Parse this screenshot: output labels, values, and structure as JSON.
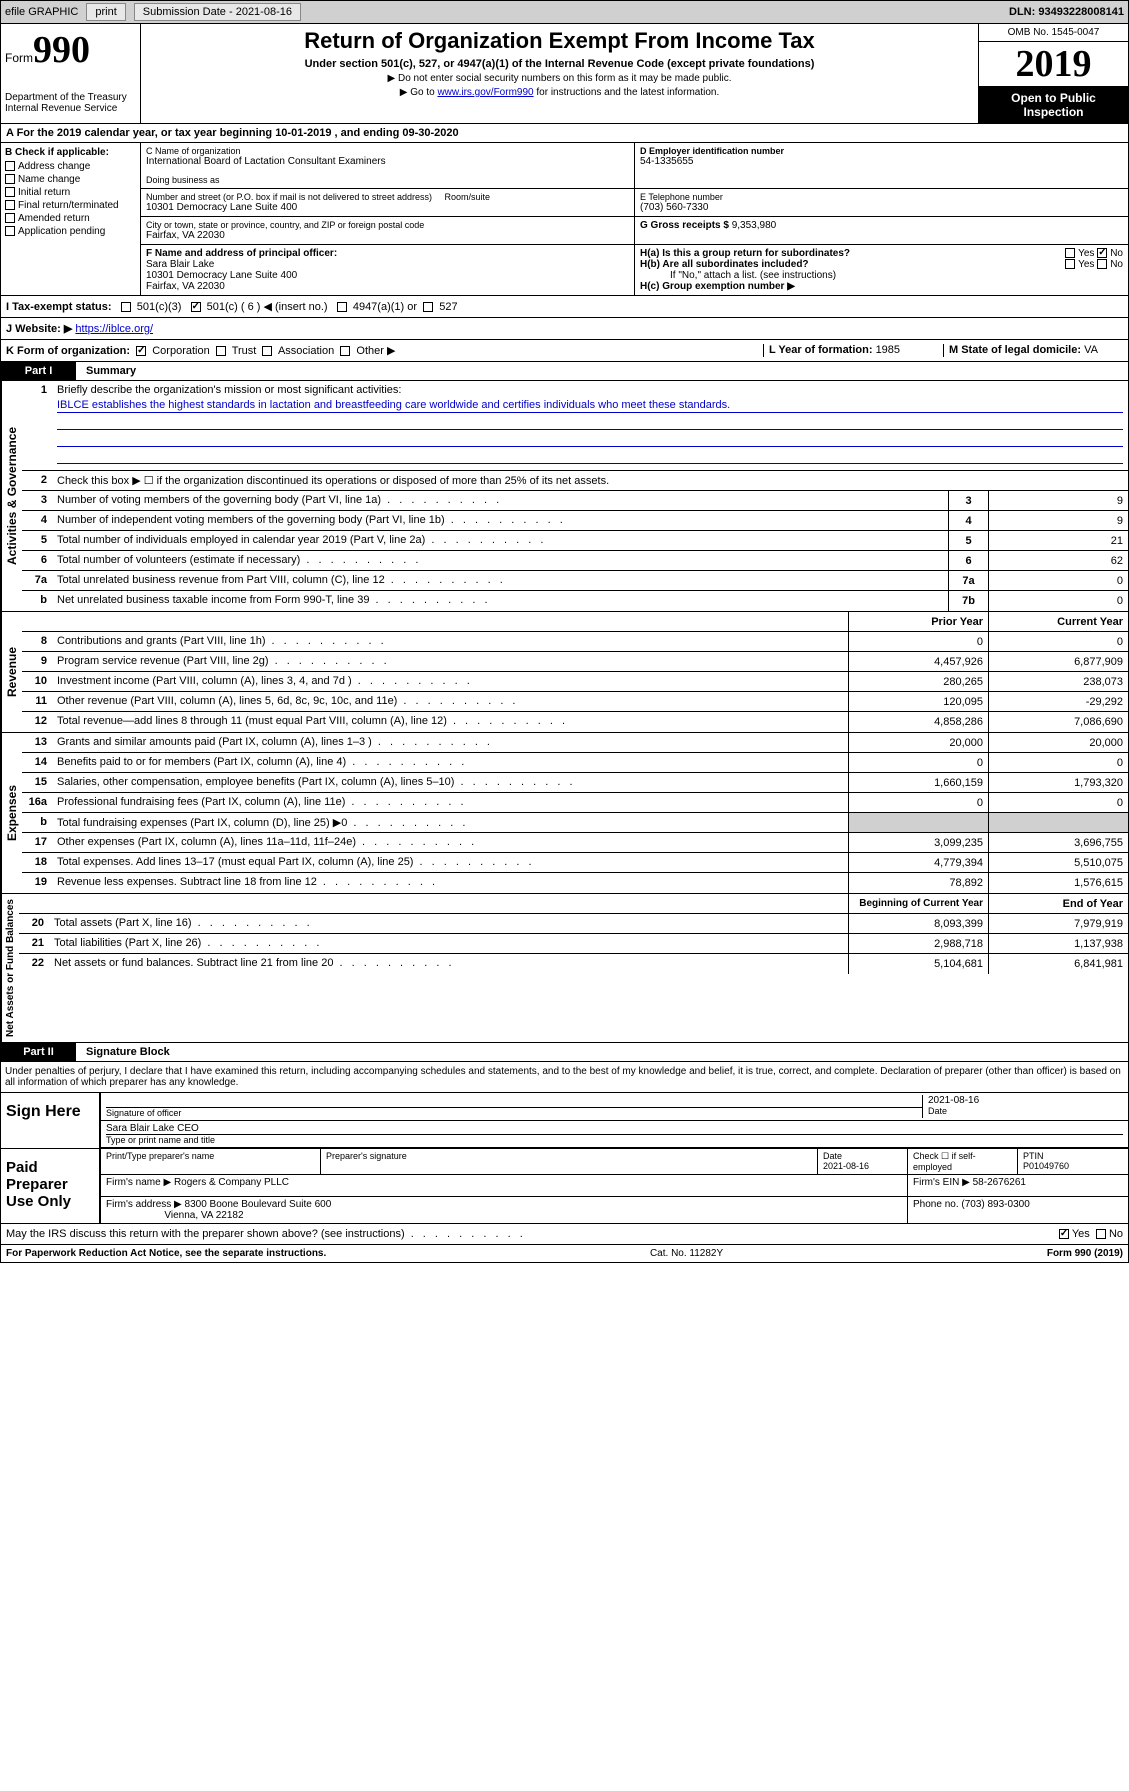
{
  "topbar": {
    "efile": "efile GRAPHIC",
    "print": "print",
    "subdate_label": "Submission Date - ",
    "subdate": "2021-08-16",
    "dln": "DLN: 93493228008141"
  },
  "header": {
    "form_label": "Form",
    "form_num": "990",
    "dept": "Department of the Treasury",
    "irs": "Internal Revenue Service",
    "title": "Return of Organization Exempt From Income Tax",
    "subtitle": "Under section 501(c), 527, or 4947(a)(1) of the Internal Revenue Code (except private foundations)",
    "note1": "▶ Do not enter social security numbers on this form as it may be made public.",
    "note2_pre": "▶ Go to ",
    "note2_link": "www.irs.gov/Form990",
    "note2_post": " for instructions and the latest information.",
    "omb": "OMB No. 1545-0047",
    "year": "2019",
    "inspect1": "Open to Public",
    "inspect2": "Inspection"
  },
  "period": {
    "text": "A  For the 2019 calendar year, or tax year beginning 10-01-2019    , and ending 09-30-2020"
  },
  "sectionB": {
    "title": "B Check if applicable:",
    "opts": [
      "Address change",
      "Name change",
      "Initial return",
      "Final return/terminated",
      "Amended return",
      "Application pending"
    ]
  },
  "org": {
    "c_label": "C Name of organization",
    "name": "International Board of Lactation Consultant Examiners",
    "dba_label": "Doing business as",
    "dba": "",
    "addr_label": "Number and street (or P.O. box if mail is not delivered to street address)",
    "room_label": "Room/suite",
    "addr": "10301 Democracy Lane Suite 400",
    "city_label": "City or town, state or province, country, and ZIP or foreign postal code",
    "city": "Fairfax, VA  22030",
    "d_label": "D Employer identification number",
    "ein": "54-1335655",
    "e_label": "E Telephone number",
    "phone": "(703) 560-7330",
    "g_label": "G Gross receipts $ ",
    "gross": "9,353,980",
    "f_label": "F  Name and address of principal officer:",
    "officer": "Sara Blair Lake",
    "officer_addr": "10301 Democracy Lane Suite 400\nFairfax, VA  22030",
    "ha": "H(a)  Is this a group return for subordinates?",
    "ha_yes": "Yes",
    "ha_no": "No",
    "hb": "H(b)  Are all subordinates included?",
    "hb_note": "If \"No,\" attach a list. (see instructions)",
    "hc": "H(c)  Group exemption number ▶"
  },
  "status": {
    "i": "I   Tax-exempt status:",
    "c3": "501(c)(3)",
    "c": "501(c) ( 6 ) ◀ (insert no.)",
    "a1": "4947(a)(1) or",
    "s527": "527",
    "j": "J   Website: ▶",
    "website": "https://iblce.org/"
  },
  "k": {
    "label": "K Form of organization:",
    "corp": "Corporation",
    "trust": "Trust",
    "assoc": "Association",
    "other": "Other ▶",
    "l": "L Year of formation: ",
    "l_val": "1985",
    "m": "M State of legal domicile: ",
    "m_val": "VA"
  },
  "part1": {
    "label": "Part I",
    "title": "Summary"
  },
  "governance": {
    "title": "Activities & Governance",
    "l1": "Briefly describe the organization's mission or most significant activities:",
    "mission": "IBLCE establishes the highest standards in lactation and breastfeeding care worldwide and certifies individuals who meet these standards.",
    "l2": "Check this box ▶ ☐  if the organization discontinued its operations or disposed of more than 25% of its net assets.",
    "l3": "Number of voting members of the governing body (Part VI, line 1a)",
    "v3": "9",
    "l4": "Number of independent voting members of the governing body (Part VI, line 1b)",
    "v4": "9",
    "l5": "Total number of individuals employed in calendar year 2019 (Part V, line 2a)",
    "v5": "21",
    "l6": "Total number of volunteers (estimate if necessary)",
    "v6": "62",
    "l7a": "Total unrelated business revenue from Part VIII, column (C), line 12",
    "v7a": "0",
    "l7b": "Net unrelated business taxable income from Form 990-T, line 39",
    "v7b": "0"
  },
  "revenue": {
    "title": "Revenue",
    "prior": "Prior Year",
    "current": "Current Year",
    "rows": [
      {
        "n": "8",
        "t": "Contributions and grants (Part VIII, line 1h)",
        "p": "0",
        "c": "0"
      },
      {
        "n": "9",
        "t": "Program service revenue (Part VIII, line 2g)",
        "p": "4,457,926",
        "c": "6,877,909"
      },
      {
        "n": "10",
        "t": "Investment income (Part VIII, column (A), lines 3, 4, and 7d )",
        "p": "280,265",
        "c": "238,073"
      },
      {
        "n": "11",
        "t": "Other revenue (Part VIII, column (A), lines 5, 6d, 8c, 9c, 10c, and 11e)",
        "p": "120,095",
        "c": "-29,292"
      },
      {
        "n": "12",
        "t": "Total revenue—add lines 8 through 11 (must equal Part VIII, column (A), line 12)",
        "p": "4,858,286",
        "c": "7,086,690"
      }
    ]
  },
  "expenses": {
    "title": "Expenses",
    "rows": [
      {
        "n": "13",
        "t": "Grants and similar amounts paid (Part IX, column (A), lines 1–3 )",
        "p": "20,000",
        "c": "20,000"
      },
      {
        "n": "14",
        "t": "Benefits paid to or for members (Part IX, column (A), line 4)",
        "p": "0",
        "c": "0"
      },
      {
        "n": "15",
        "t": "Salaries, other compensation, employee benefits (Part IX, column (A), lines 5–10)",
        "p": "1,660,159",
        "c": "1,793,320"
      },
      {
        "n": "16a",
        "t": "Professional fundraising fees (Part IX, column (A), line 11e)",
        "p": "0",
        "c": "0"
      },
      {
        "n": "b",
        "t": "Total fundraising expenses (Part IX, column (D), line 25) ▶0",
        "p": "",
        "c": "",
        "sh": true
      },
      {
        "n": "17",
        "t": "Other expenses (Part IX, column (A), lines 11a–11d, 11f–24e)",
        "p": "3,099,235",
        "c": "3,696,755"
      },
      {
        "n": "18",
        "t": "Total expenses. Add lines 13–17 (must equal Part IX, column (A), line 25)",
        "p": "4,779,394",
        "c": "5,510,075"
      },
      {
        "n": "19",
        "t": "Revenue less expenses. Subtract line 18 from line 12",
        "p": "78,892",
        "c": "1,576,615"
      }
    ]
  },
  "netassets": {
    "title": "Net Assets or Fund Balances",
    "begin": "Beginning of Current Year",
    "end": "End of Year",
    "rows": [
      {
        "n": "20",
        "t": "Total assets (Part X, line 16)",
        "p": "8,093,399",
        "c": "7,979,919"
      },
      {
        "n": "21",
        "t": "Total liabilities (Part X, line 26)",
        "p": "2,988,718",
        "c": "1,137,938"
      },
      {
        "n": "22",
        "t": "Net assets or fund balances. Subtract line 21 from line 20",
        "p": "5,104,681",
        "c": "6,841,981"
      }
    ]
  },
  "part2": {
    "label": "Part II",
    "title": "Signature Block"
  },
  "perjury": "Under penalties of perjury, I declare that I have examined this return, including accompanying schedules and statements, and to the best of my knowledge and belief, it is true, correct, and complete. Declaration of preparer (other than officer) is based on all information of which preparer has any knowledge.",
  "sign": {
    "here": "Sign Here",
    "sig_label": "Signature of officer",
    "date": "2021-08-16",
    "date_label": "Date",
    "name": "Sara Blair Lake CEO",
    "name_label": "Type or print name and title"
  },
  "preparer": {
    "title": "Paid Preparer Use Only",
    "h1": "Print/Type preparer's name",
    "h2": "Preparer's signature",
    "h3": "Date",
    "h3v": "2021-08-16",
    "h4": "Check ☐ if self-employed",
    "h5": "PTIN",
    "ptin": "P01049760",
    "firm_label": "Firm's name    ▶",
    "firm": "Rogers & Company PLLC",
    "ein_label": "Firm's EIN ▶",
    "ein": "58-2676261",
    "addr_label": "Firm's address ▶",
    "addr": "8300 Boone Boulevard Suite 600",
    "city": "Vienna, VA  22182",
    "phone_label": "Phone no. ",
    "phone": "(703) 893-0300"
  },
  "discuss": {
    "text": "May the IRS discuss this return with the preparer shown above? (see instructions)",
    "yes": "Yes",
    "no": "No"
  },
  "footer": {
    "left": "For Paperwork Reduction Act Notice, see the separate instructions.",
    "mid": "Cat. No. 11282Y",
    "right": "Form 990 (2019)"
  }
}
